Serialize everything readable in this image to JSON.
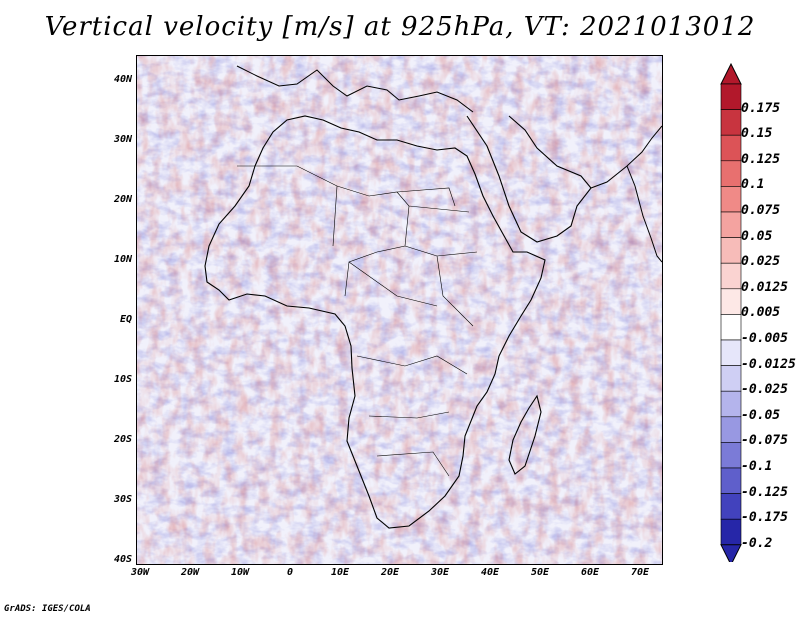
{
  "title": "Vertical velocity [m/s] at 925hPa, VT: 2021013012",
  "footer": "GrADS: IGES/COLA",
  "lat_labels": [
    "40N",
    "30N",
    "20N",
    "10N",
    "EQ",
    "10S",
    "20S",
    "30S",
    "40S"
  ],
  "lon_labels": [
    "30W",
    "20W",
    "10W",
    "0",
    "10E",
    "20E",
    "30E",
    "40E",
    "50E",
    "60E",
    "70E"
  ],
  "colorbar": {
    "labels": [
      "0.175",
      "0.15",
      "0.125",
      "0.1",
      "0.075",
      "0.05",
      "0.025",
      "0.0125",
      "0.005",
      "-0.005",
      "-0.0125",
      "-0.025",
      "-0.05",
      "-0.075",
      "-0.1",
      "-0.125",
      "-0.175",
      "-0.2"
    ],
    "colors": [
      "#b2182b",
      "#c8343f",
      "#dc5357",
      "#e8706f",
      "#f08a87",
      "#f4a3a0",
      "#f7bcb9",
      "#fad3d1",
      "#fde8e6",
      "#ffffff",
      "#e6e6fa",
      "#cfcff4",
      "#b4b4ec",
      "#9898e2",
      "#7b7bd7",
      "#5f5fcb",
      "#4242bd",
      "#2626a8"
    ]
  },
  "palette": {
    "land_outline": "#000000",
    "background": "#f2f2fb",
    "red": "#e8706f",
    "blue": "#7b7bd7"
  }
}
